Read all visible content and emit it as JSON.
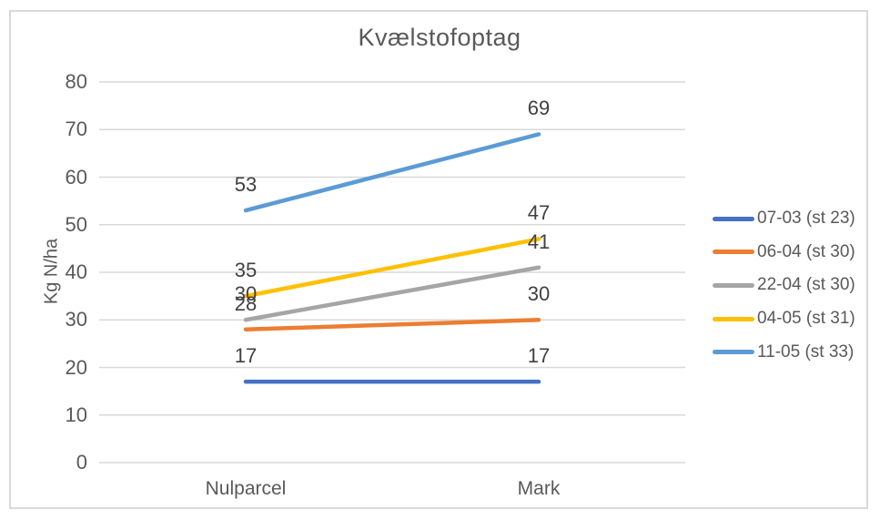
{
  "chart_data": {
    "type": "line",
    "title": "Kvælstofoptag",
    "ylabel": "Kg N/ha",
    "xlabel": "",
    "categories": [
      "Nulparcel",
      "Mark"
    ],
    "series": [
      {
        "name": "07-03 (st 23)",
        "color": "#4472C4",
        "values": [
          17,
          17
        ]
      },
      {
        "name": "06-04 (st 30)",
        "color": "#ED7D31",
        "values": [
          28,
          30
        ]
      },
      {
        "name": "22-04 (st 30)",
        "color": "#A5A5A5",
        "values": [
          30,
          41
        ]
      },
      {
        "name": "04-05 (st 31)",
        "color": "#FFC000",
        "values": [
          35,
          47
        ]
      },
      {
        "name": "11-05 (st 33)",
        "color": "#5B9BD5",
        "values": [
          53,
          69
        ]
      }
    ],
    "ylim": [
      0,
      80
    ],
    "yticks": [
      0,
      10,
      20,
      30,
      40,
      50,
      60,
      70,
      80
    ],
    "grid": true,
    "data_labels": true,
    "legend_position": "right"
  },
  "colors": {
    "gridline": "#D9D9D9",
    "frame": "#D9D9D9",
    "title_text": "#595959",
    "axis_text": "#595959",
    "data_label_text": "#404040",
    "background": "#FFFFFF"
  }
}
